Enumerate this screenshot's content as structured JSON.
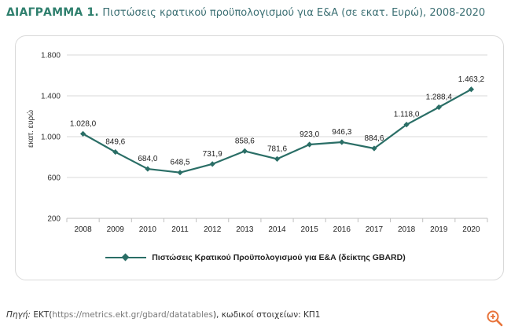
{
  "figure": {
    "label": "ΔΙΑΓΡΑΜΜΑ 1.",
    "title_text": "Πιστώσεις κρατικού προϋπολογισμού για Ε&Α (σε εκατ. Ευρώ), 2008-2020"
  },
  "source": {
    "label": "Πηγή:",
    "org": "ΕΚΤ(",
    "url": "https://metrics.ekt.gr/gbard/datatables",
    "rest": "), κωδικοί στοιχείων: ΚΠ1"
  },
  "chart_data": {
    "type": "line",
    "title": "",
    "xlabel": "",
    "ylabel": "εκατ. ευρώ",
    "categories": [
      "2008",
      "2009",
      "2010",
      "2011",
      "2012",
      "2013",
      "2014",
      "2015",
      "2016",
      "2017",
      "2018",
      "2019",
      "2020"
    ],
    "series": [
      {
        "name": "Πιστώσεις Κρατικού Προϋπολογισμού για Ε&Α (δείκτης GBARD)",
        "values": [
          1028.0,
          849.6,
          684.0,
          648.5,
          731.9,
          858.6,
          781.6,
          923.0,
          946.3,
          884.6,
          1118.0,
          1288.4,
          1463.2
        ],
        "data_labels": [
          "1.028,0",
          "849,6",
          "684,0",
          "648,5",
          "731,9",
          "858,6",
          "781,6",
          "923,0",
          "946,3",
          "884,6",
          "1.118,0",
          "1.288,4",
          "1.463,2"
        ]
      }
    ],
    "ylim": [
      200,
      1800
    ],
    "yticks": [
      200,
      600,
      1000,
      1400,
      1800
    ],
    "ytick_labels": [
      "200",
      "600",
      "1.000",
      "1.400",
      "1.800"
    ],
    "grid": "horizontal",
    "legend_position": "bottom",
    "color": "#2a6e66"
  },
  "toolbar": {
    "zoom_icon": "zoom-in-icon"
  }
}
